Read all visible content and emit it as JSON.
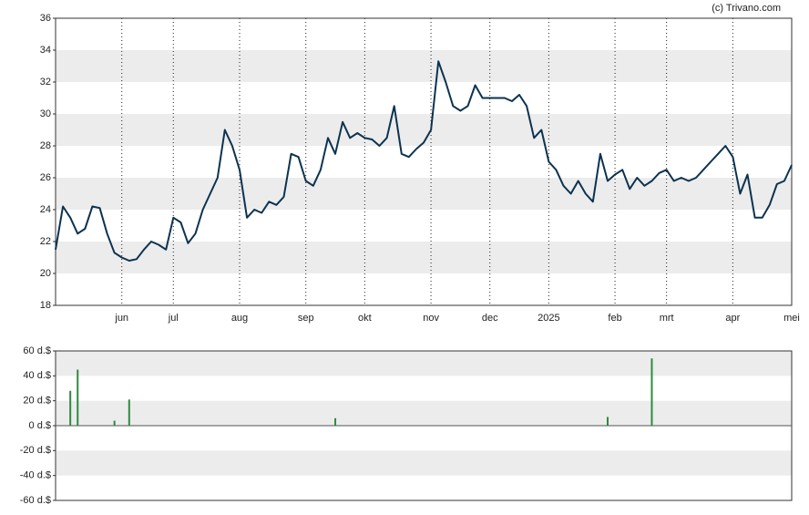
{
  "chart_data": [
    {
      "type": "line",
      "title": "(c) Trivano.com",
      "color": "#0b3350",
      "categories": [
        null,
        null,
        null,
        null,
        null,
        null,
        null,
        null,
        null,
        "jun",
        null,
        null,
        null,
        null,
        null,
        null,
        "jul",
        null,
        null,
        null,
        null,
        null,
        null,
        null,
        null,
        "aug",
        null,
        null,
        null,
        null,
        null,
        null,
        null,
        null,
        "sep",
        null,
        null,
        null,
        null,
        null,
        null,
        null,
        "okt",
        null,
        null,
        null,
        null,
        null,
        null,
        null,
        null,
        "nov",
        null,
        null,
        null,
        null,
        null,
        null,
        null,
        "dec",
        null,
        null,
        null,
        null,
        null,
        null,
        null,
        "2025",
        null,
        null,
        null,
        null,
        null,
        null,
        null,
        null,
        "feb",
        null,
        null,
        null,
        null,
        null,
        null,
        "mrt",
        null,
        null,
        null,
        null,
        null,
        null,
        null,
        null,
        "apr",
        null,
        null,
        null,
        null,
        null,
        null,
        null,
        "mei"
      ],
      "values": [
        21.5,
        24.2,
        23.5,
        22.5,
        22.8,
        24.2,
        24.1,
        22.5,
        21.3,
        21.0,
        20.8,
        20.9,
        21.5,
        22.0,
        21.8,
        21.5,
        23.5,
        23.2,
        21.9,
        22.5,
        24.0,
        25.0,
        26.0,
        29.0,
        28.0,
        26.5,
        23.5,
        24.0,
        23.8,
        24.5,
        24.3,
        24.8,
        27.5,
        27.3,
        25.8,
        25.5,
        26.5,
        28.5,
        27.5,
        29.5,
        28.5,
        28.8,
        28.5,
        28.4,
        28.0,
        28.5,
        30.5,
        27.5,
        27.3,
        27.8,
        28.2,
        29.0,
        33.3,
        32.0,
        30.5,
        30.2,
        30.5,
        31.8,
        31.0,
        31.0,
        31.0,
        31.0,
        30.8,
        31.2,
        30.5,
        28.5,
        29.0,
        27.0,
        26.5,
        25.5,
        25.0,
        25.8,
        25.0,
        24.5,
        27.5,
        25.8,
        26.2,
        26.5,
        25.3,
        26.0,
        25.5,
        25.8,
        26.3,
        26.5,
        25.8,
        26.0,
        25.8,
        26.0,
        26.5,
        27.0,
        27.5,
        28.0,
        27.3,
        25.0,
        26.2,
        23.5,
        23.5,
        24.3,
        25.6,
        25.8,
        26.8
      ],
      "ylim": [
        18,
        36
      ],
      "yticks": [
        18,
        20,
        22,
        24,
        26,
        28,
        30,
        32,
        34,
        36
      ],
      "grid": true
    },
    {
      "type": "bar",
      "color": "#2e8b3e",
      "values": [
        null,
        null,
        28,
        45,
        null,
        null,
        null,
        null,
        4,
        null,
        21,
        null,
        null,
        null,
        null,
        null,
        null,
        null,
        null,
        null,
        null,
        null,
        null,
        null,
        null,
        null,
        null,
        null,
        null,
        null,
        null,
        null,
        null,
        null,
        null,
        null,
        null,
        null,
        6,
        null,
        null,
        null,
        null,
        null,
        null,
        null,
        null,
        null,
        null,
        null,
        null,
        null,
        null,
        null,
        null,
        null,
        null,
        null,
        null,
        null,
        null,
        null,
        null,
        null,
        null,
        null,
        null,
        null,
        null,
        null,
        null,
        null,
        null,
        null,
        null,
        7,
        null,
        null,
        null,
        null,
        null,
        54,
        null,
        null,
        null,
        null,
        null,
        null,
        null,
        null,
        null,
        null,
        null,
        null,
        null,
        null,
        null,
        null,
        null,
        null,
        null
      ],
      "ylim": [
        -60,
        60
      ],
      "yticks": [
        {
          "value": 60,
          "label": "60 d.$"
        },
        {
          "value": 40,
          "label": "40 d.$"
        },
        {
          "value": 20,
          "label": "20 d.$"
        },
        {
          "value": 0,
          "label": "0 d.$"
        },
        {
          "value": -20,
          "label": "-20 d.$"
        },
        {
          "value": -40,
          "label": "-40 d.$"
        },
        {
          "value": -60,
          "label": "-60 d.$"
        }
      ],
      "grid": true
    }
  ]
}
